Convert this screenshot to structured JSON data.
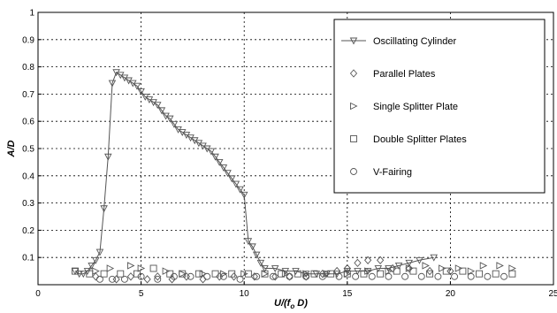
{
  "chart_data": {
    "type": "scatter",
    "title": "",
    "xlabel": "U/(f",
    "xlabel_sub": "o",
    "xlabel_tail": " D)",
    "ylabel": "A/D",
    "xlim": [
      0,
      25
    ],
    "ylim": [
      0,
      1
    ],
    "xticks": [
      0,
      5,
      10,
      15,
      20,
      25
    ],
    "yticks": [
      0.1,
      0.2,
      0.3,
      0.4,
      0.5,
      0.6,
      0.7,
      0.8,
      0.9,
      1
    ],
    "ytick_labels": [
      "0.1",
      "0.2",
      "0.3",
      "0.4",
      "0.5",
      "0.6",
      "0.7",
      "0.8",
      "0.9",
      "1"
    ],
    "xtick_labels": [
      "0",
      "5",
      "10",
      "15",
      "20",
      "25"
    ],
    "grid": true,
    "legend_position": "top-right",
    "series": [
      {
        "name": "Oscillating Cylinder",
        "marker": "triangle-down",
        "line": true,
        "points": [
          [
            1.8,
            0.05
          ],
          [
            2.0,
            0.04
          ],
          [
            2.2,
            0.04
          ],
          [
            2.4,
            0.05
          ],
          [
            2.6,
            0.07
          ],
          [
            2.8,
            0.09
          ],
          [
            3.0,
            0.12
          ],
          [
            3.2,
            0.28
          ],
          [
            3.4,
            0.47
          ],
          [
            3.6,
            0.74
          ],
          [
            3.8,
            0.78
          ],
          [
            4.0,
            0.77
          ],
          [
            4.2,
            0.76
          ],
          [
            4.4,
            0.75
          ],
          [
            4.6,
            0.74
          ],
          [
            4.8,
            0.73
          ],
          [
            5.0,
            0.71
          ],
          [
            5.2,
            0.69
          ],
          [
            5.4,
            0.68
          ],
          [
            5.6,
            0.67
          ],
          [
            5.8,
            0.66
          ],
          [
            6.0,
            0.64
          ],
          [
            6.2,
            0.62
          ],
          [
            6.4,
            0.61
          ],
          [
            6.6,
            0.59
          ],
          [
            6.8,
            0.57
          ],
          [
            7.0,
            0.56
          ],
          [
            7.2,
            0.55
          ],
          [
            7.4,
            0.54
          ],
          [
            7.6,
            0.53
          ],
          [
            7.8,
            0.52
          ],
          [
            8.0,
            0.51
          ],
          [
            8.2,
            0.5
          ],
          [
            8.4,
            0.49
          ],
          [
            8.6,
            0.47
          ],
          [
            8.8,
            0.45
          ],
          [
            9.0,
            0.43
          ],
          [
            9.2,
            0.41
          ],
          [
            9.4,
            0.39
          ],
          [
            9.6,
            0.37
          ],
          [
            9.8,
            0.35
          ],
          [
            10.0,
            0.33
          ],
          [
            10.2,
            0.16
          ],
          [
            10.4,
            0.14
          ],
          [
            10.6,
            0.11
          ],
          [
            10.8,
            0.08
          ],
          [
            11.0,
            0.06
          ],
          [
            11.5,
            0.06
          ],
          [
            12.0,
            0.05
          ],
          [
            12.5,
            0.05
          ],
          [
            13.0,
            0.04
          ],
          [
            13.5,
            0.04
          ],
          [
            14.0,
            0.04
          ],
          [
            14.5,
            0.04
          ],
          [
            15.0,
            0.05
          ],
          [
            15.5,
            0.05
          ],
          [
            16.0,
            0.05
          ],
          [
            16.5,
            0.06
          ],
          [
            17.0,
            0.06
          ],
          [
            17.5,
            0.07
          ],
          [
            18.0,
            0.08
          ],
          [
            18.5,
            0.09
          ],
          [
            19.2,
            0.1
          ]
        ]
      },
      {
        "name": "Parallel Plates",
        "marker": "diamond",
        "line": false,
        "points": [
          [
            2.8,
            0.03
          ],
          [
            3.8,
            0.02
          ],
          [
            4.5,
            0.03
          ],
          [
            5.3,
            0.02
          ],
          [
            5.8,
            0.03
          ],
          [
            6.5,
            0.02
          ],
          [
            7.2,
            0.03
          ],
          [
            8.0,
            0.02
          ],
          [
            8.8,
            0.03
          ],
          [
            9.5,
            0.03
          ],
          [
            10.5,
            0.03
          ],
          [
            11.5,
            0.03
          ],
          [
            12.2,
            0.03
          ],
          [
            13.0,
            0.03
          ],
          [
            13.8,
            0.04
          ],
          [
            14.5,
            0.05
          ],
          [
            15.0,
            0.06
          ],
          [
            15.5,
            0.08
          ],
          [
            16.0,
            0.09
          ],
          [
            16.6,
            0.09
          ],
          [
            17.2,
            0.06
          ],
          [
            18.0,
            0.06
          ],
          [
            19.0,
            0.05
          ],
          [
            20.0,
            0.05
          ]
        ]
      },
      {
        "name": "Single Splitter Plate",
        "marker": "triangle-right",
        "line": false,
        "points": [
          [
            2.8,
            0.05
          ],
          [
            3.5,
            0.06
          ],
          [
            4.5,
            0.07
          ],
          [
            5.0,
            0.06
          ],
          [
            6.2,
            0.05
          ],
          [
            7.0,
            0.04
          ],
          [
            8.0,
            0.04
          ],
          [
            9.0,
            0.04
          ],
          [
            10.0,
            0.04
          ],
          [
            11.0,
            0.04
          ],
          [
            12.0,
            0.04
          ],
          [
            13.0,
            0.04
          ],
          [
            14.0,
            0.04
          ],
          [
            15.0,
            0.04
          ],
          [
            16.0,
            0.05
          ],
          [
            17.0,
            0.05
          ],
          [
            18.0,
            0.06
          ],
          [
            18.8,
            0.07
          ],
          [
            19.6,
            0.06
          ],
          [
            20.4,
            0.06
          ],
          [
            21.0,
            0.05
          ],
          [
            21.6,
            0.07
          ],
          [
            22.4,
            0.07
          ],
          [
            23.0,
            0.06
          ]
        ]
      },
      {
        "name": "Double Splitter Plates",
        "marker": "square",
        "line": false,
        "points": [
          [
            1.8,
            0.05
          ],
          [
            2.5,
            0.04
          ],
          [
            3.2,
            0.04
          ],
          [
            4.0,
            0.04
          ],
          [
            4.8,
            0.04
          ],
          [
            5.6,
            0.06
          ],
          [
            6.4,
            0.04
          ],
          [
            7.0,
            0.04
          ],
          [
            7.8,
            0.04
          ],
          [
            8.6,
            0.04
          ],
          [
            9.4,
            0.04
          ],
          [
            10.2,
            0.04
          ],
          [
            11.0,
            0.04
          ],
          [
            11.8,
            0.04
          ],
          [
            12.6,
            0.04
          ],
          [
            13.4,
            0.04
          ],
          [
            14.2,
            0.04
          ],
          [
            15.0,
            0.04
          ],
          [
            15.8,
            0.04
          ],
          [
            16.6,
            0.04
          ],
          [
            17.4,
            0.05
          ],
          [
            18.2,
            0.05
          ],
          [
            19.0,
            0.04
          ],
          [
            19.8,
            0.05
          ],
          [
            20.6,
            0.05
          ],
          [
            21.4,
            0.04
          ],
          [
            22.2,
            0.04
          ],
          [
            23.0,
            0.04
          ]
        ]
      },
      {
        "name": "V-Fairing",
        "marker": "circle",
        "line": false,
        "points": [
          [
            3.0,
            0.02
          ],
          [
            3.6,
            0.02
          ],
          [
            4.2,
            0.02
          ],
          [
            5.0,
            0.03
          ],
          [
            5.8,
            0.02
          ],
          [
            6.6,
            0.03
          ],
          [
            7.4,
            0.03
          ],
          [
            8.2,
            0.03
          ],
          [
            9.0,
            0.03
          ],
          [
            9.8,
            0.02
          ],
          [
            10.6,
            0.03
          ],
          [
            11.4,
            0.03
          ],
          [
            12.2,
            0.03
          ],
          [
            13.0,
            0.03
          ],
          [
            13.8,
            0.03
          ],
          [
            14.6,
            0.03
          ],
          [
            15.4,
            0.03
          ],
          [
            16.2,
            0.03
          ],
          [
            17.0,
            0.03
          ],
          [
            17.8,
            0.03
          ],
          [
            18.6,
            0.03
          ],
          [
            19.4,
            0.03
          ],
          [
            20.2,
            0.03
          ],
          [
            21.0,
            0.03
          ],
          [
            21.8,
            0.03
          ],
          [
            22.6,
            0.03
          ]
        ]
      }
    ]
  }
}
